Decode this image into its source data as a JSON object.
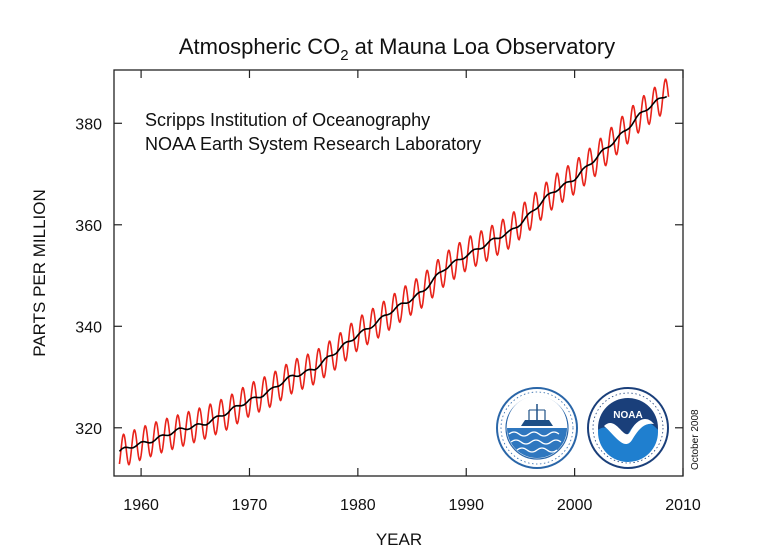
{
  "chart_data": {
    "type": "line",
    "title_main": "Atmospheric CO",
    "title_sub": "2",
    "title_rest": " at Mauna Loa Observatory",
    "xlabel": "YEAR",
    "ylabel": "PARTS PER MILLION",
    "xlim": [
      1957.5,
      2010
    ],
    "ylim": [
      310.5,
      390.5
    ],
    "xticks": [
      1960,
      1970,
      1980,
      1990,
      2000,
      2010
    ],
    "yticks": [
      320,
      340,
      360,
      380
    ],
    "credits": [
      "Scripps Institution of Oceanography",
      "NOAA Earth System Research Laboratory"
    ],
    "date_note": "October 2008",
    "logos": [
      "scripps-seal",
      "noaa-logo"
    ],
    "grid": false,
    "series": [
      {
        "color": "#e8231a",
        "style": "monthly-seasonal",
        "amplitude": 3.2
      },
      {
        "color": "#000000",
        "style": "trend",
        "x": [
          1958,
          1960,
          1962,
          1964,
          1966,
          1968,
          1970,
          1972,
          1974,
          1976,
          1978,
          1980,
          1982,
          1984,
          1986,
          1988,
          1990,
          1992,
          1994,
          1996,
          1998,
          2000,
          2002,
          2004,
          2006,
          2008.7
        ],
        "values": [
          315.2,
          316.9,
          318.4,
          319.7,
          321.1,
          322.9,
          325.5,
          327.4,
          330.1,
          331.8,
          334.8,
          338.5,
          341.1,
          344.2,
          347.0,
          351.2,
          354.2,
          356.2,
          358.6,
          362.4,
          366.4,
          369.3,
          373.0,
          377.3,
          381.6,
          386.0
        ]
      }
    ]
  }
}
